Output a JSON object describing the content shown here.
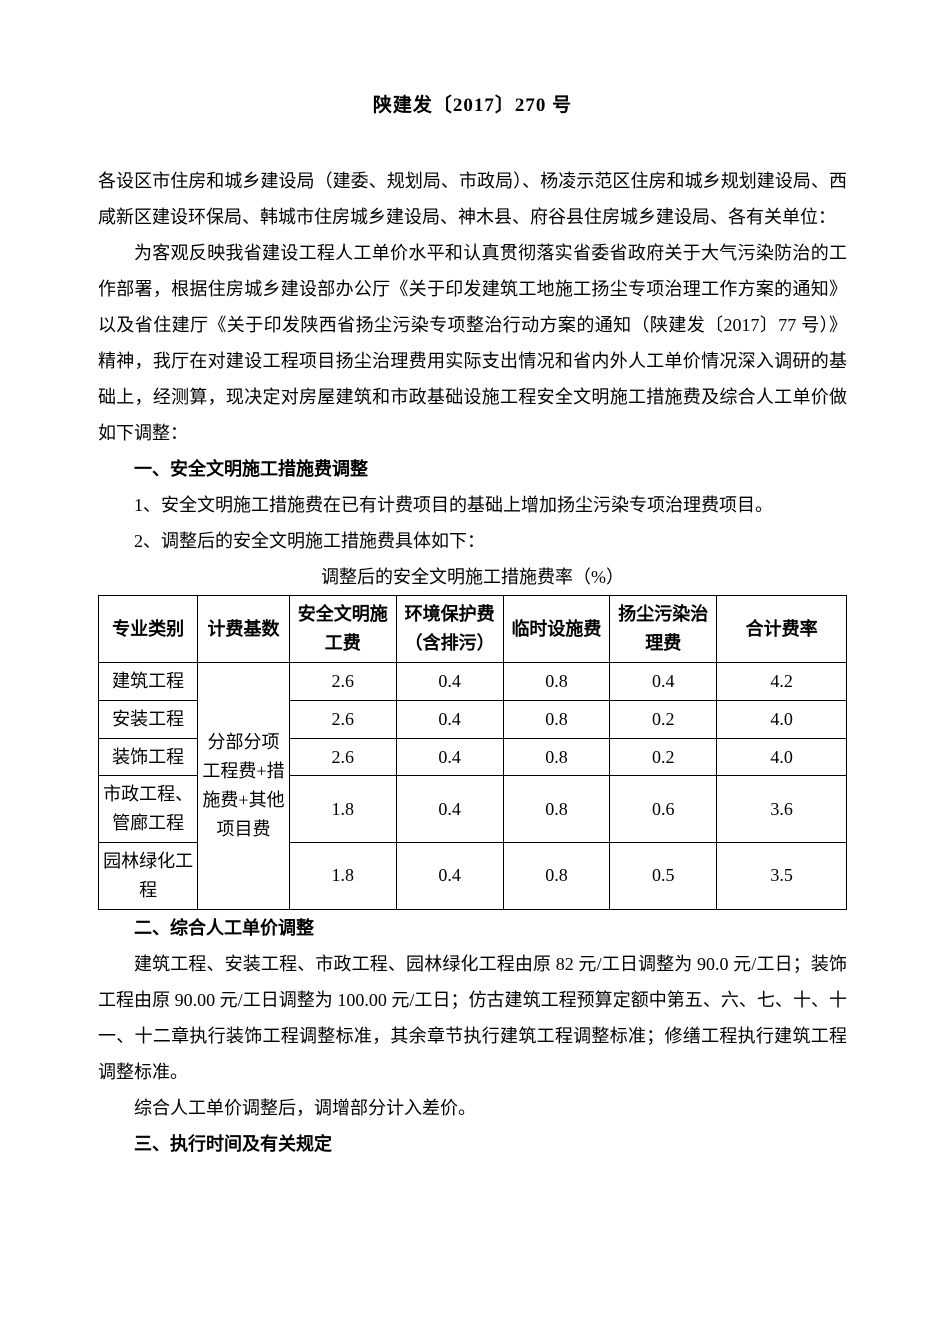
{
  "document": {
    "title": "陕建发〔2017〕270 号",
    "addressees": "各设区市住房和城乡建设局（建委、规划局、市政局）、杨凌示范区住房和城乡规划建设局、西咸新区建设环保局、韩城市住房城乡建设局、神木县、府谷县住房城乡建设局、各有关单位：",
    "preamble": "为客观反映我省建设工程人工单价水平和认真贯彻落实省委省政府关于大气污染防治的工作部署，根据住房城乡建设部办公厅《关于印发建筑工地施工扬尘专项治理工作方案的通知》以及省住建厅《关于印发陕西省扬尘污染专项整治行动方案的通知（陕建发〔2017〕77 号）》精神，我厅在对建设工程项目扬尘治理费用实际支出情况和省内外人工单价情况深入调研的基础上，经测算，现决定对房屋建筑和市政基础设施工程安全文明施工措施费及综合人工单价做如下调整：",
    "section1": {
      "heading": "一、安全文明施工措施费调整",
      "item1": "1、安全文明施工措施费在已有计费项目的基础上增加扬尘污染专项治理费项目。",
      "item2": "2、调整后的安全文明施工措施费具体如下：",
      "table_title": "调整后的安全文明施工措施费率（%）"
    },
    "section2": {
      "heading": "二、综合人工单价调整",
      "body1": "建筑工程、安装工程、市政工程、园林绿化工程由原 82 元/工日调整为 90.0 元/工日；装饰工程由原 90.00 元/工日调整为 100.00 元/工日；仿古建筑工程预算定额中第五、六、七、十、十一、十二章执行装饰工程调整标准，其余章节执行建筑工程调整标准；修缮工程执行建筑工程调整标准。",
      "body2": "综合人工单价调整后，调增部分计入差价。"
    },
    "section3": {
      "heading": "三、执行时间及有关规定"
    }
  },
  "table": {
    "type": "table",
    "border_color": "#000000",
    "background_color": "#ffffff",
    "text_color": "#000000",
    "font_size_pt": 13,
    "columns": [
      {
        "key": "category",
        "label": "专业类别"
      },
      {
        "key": "basis",
        "label": "计费基数"
      },
      {
        "key": "safety",
        "label": "安全文明施工费"
      },
      {
        "key": "env",
        "label": "环境保护费（含排污）"
      },
      {
        "key": "temp",
        "label": "临时设施费"
      },
      {
        "key": "dust",
        "label": "扬尘污染治理费"
      },
      {
        "key": "total",
        "label": "合计费率"
      }
    ],
    "basis_merged_label": "分部分项工程费+措施费+其他项目费",
    "rows": [
      {
        "category": "建筑工程",
        "safety": "2.6",
        "env": "0.4",
        "temp": "0.8",
        "dust": "0.4",
        "total": "4.2"
      },
      {
        "category": "安装工程",
        "safety": "2.6",
        "env": "0.4",
        "temp": "0.8",
        "dust": "0.2",
        "total": "4.0"
      },
      {
        "category": "装饰工程",
        "safety": "2.6",
        "env": "0.4",
        "temp": "0.8",
        "dust": "0.2",
        "total": "4.0"
      },
      {
        "category": "市政工程、管廊工程",
        "safety": "1.8",
        "env": "0.4",
        "temp": "0.8",
        "dust": "0.6",
        "total": "3.6"
      },
      {
        "category": "园林绿化工程",
        "safety": "1.8",
        "env": "0.4",
        "temp": "0.8",
        "dust": "0.5",
        "total": "3.5"
      }
    ]
  }
}
